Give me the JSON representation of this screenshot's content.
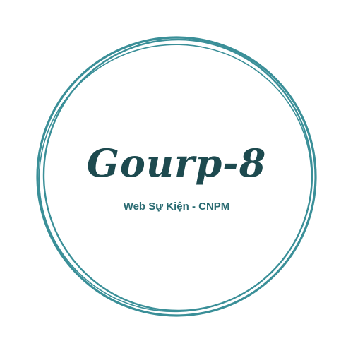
{
  "logo": {
    "title": "Gourp-8",
    "subtitle": "Web Sự Kiện - CNPM",
    "colors": {
      "title": "#1d4a4f",
      "subtitle": "#2a6b72",
      "ring": "#3a8f98",
      "background": "#ffffff"
    }
  }
}
